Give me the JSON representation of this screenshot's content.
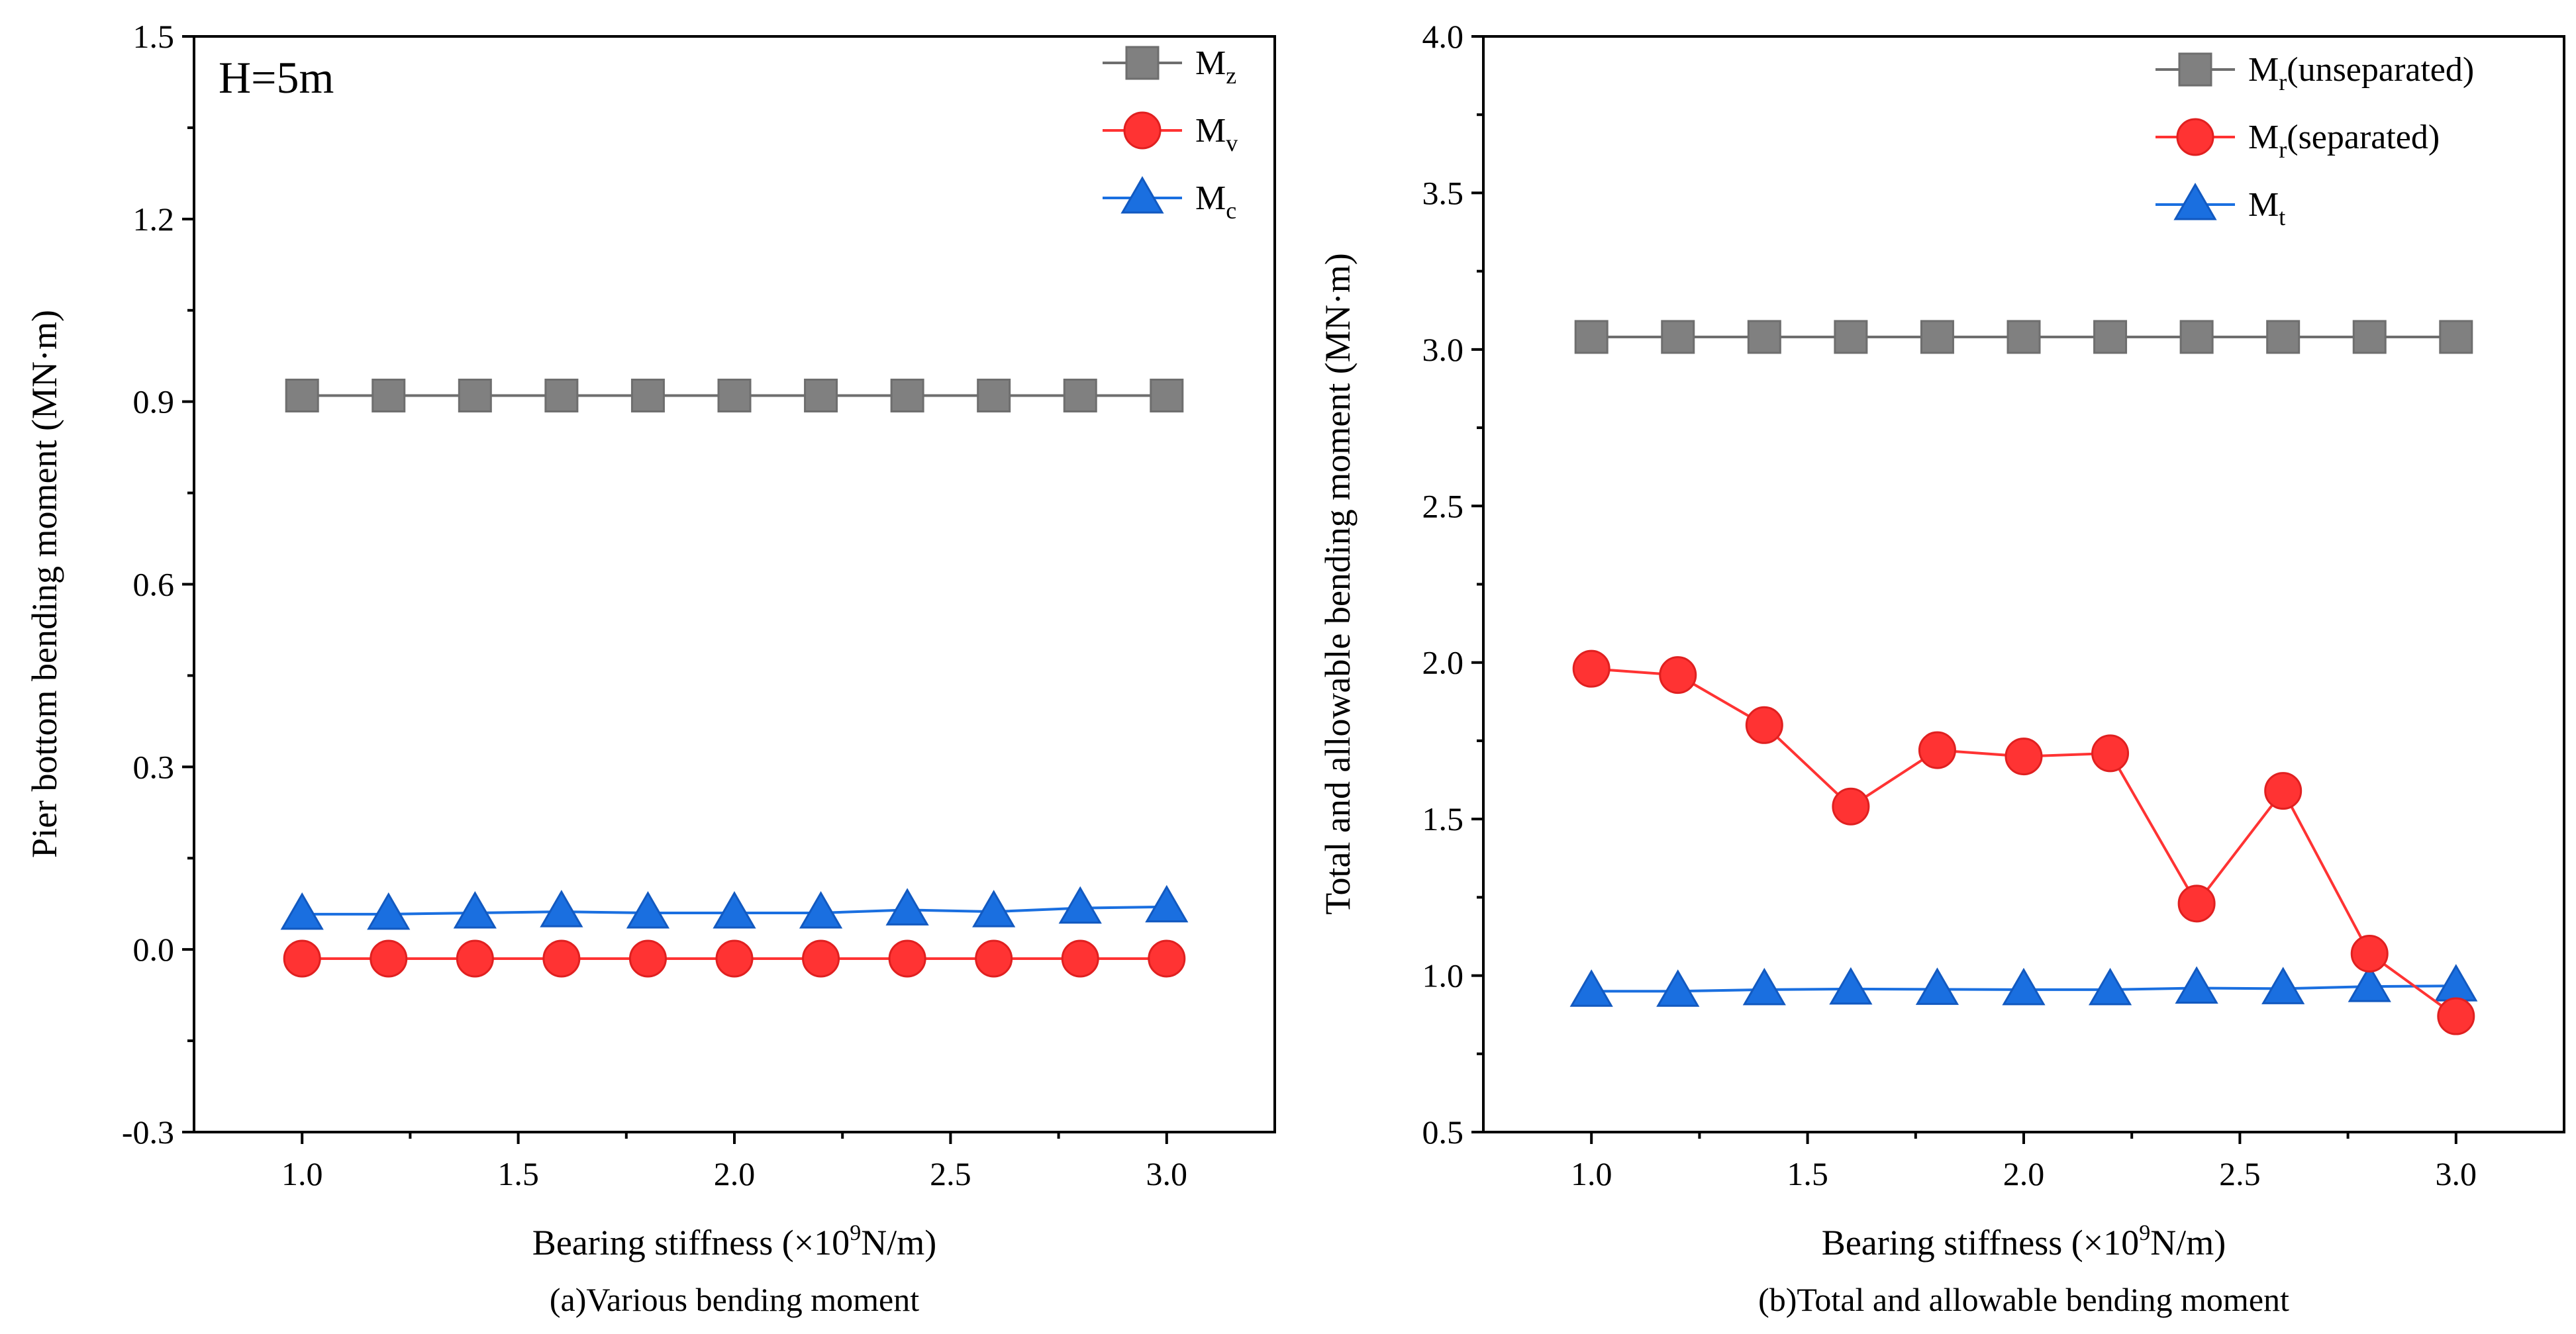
{
  "chart_data": [
    {
      "type": "line",
      "panel": "a",
      "caption": "(a)Various bending moment",
      "annotation": "H=5m",
      "xlabel": "Bearing stiffness (×10",
      "xlabel_sup": "9",
      "xlabel_tail": "N/m)",
      "ylabel": "Pier bottom bending moment (MN·m)",
      "xlim": [
        0.75,
        3.25
      ],
      "ylim": [
        -0.3,
        1.5
      ],
      "xticks": [
        1.0,
        1.5,
        2.0,
        2.5,
        3.0
      ],
      "xtick_labels": [
        "1.0",
        "1.5",
        "2.0",
        "2.5",
        "3.0"
      ],
      "yticks": [
        -0.3,
        0.0,
        0.3,
        0.6,
        0.9,
        1.2,
        1.5
      ],
      "ytick_labels": [
        "-0.3",
        "0.0",
        "0.3",
        "0.6",
        "0.9",
        "1.2",
        "1.5"
      ],
      "x": [
        1.0,
        1.2,
        1.4,
        1.6,
        1.8,
        2.0,
        2.2,
        2.4,
        2.6,
        2.8,
        3.0
      ],
      "legend_position": "top-right",
      "series": [
        {
          "name": "M",
          "sub": "z",
          "marker": "square",
          "color": "#6e6e6e",
          "fill": "#808080",
          "values": [
            0.91,
            0.91,
            0.91,
            0.91,
            0.91,
            0.91,
            0.91,
            0.91,
            0.91,
            0.91,
            0.91
          ]
        },
        {
          "name": "M",
          "sub": "v",
          "marker": "circle",
          "color": "#ff3333",
          "fill": "#ff3333",
          "values": [
            -0.015,
            -0.015,
            -0.015,
            -0.015,
            -0.015,
            -0.015,
            -0.015,
            -0.015,
            -0.015,
            -0.015,
            -0.015
          ]
        },
        {
          "name": "M",
          "sub": "c",
          "marker": "triangle",
          "color": "#1a6fe0",
          "fill": "#1a6fe0",
          "values": [
            0.058,
            0.058,
            0.06,
            0.062,
            0.06,
            0.06,
            0.06,
            0.065,
            0.062,
            0.068,
            0.07
          ]
        }
      ]
    },
    {
      "type": "line",
      "panel": "b",
      "caption": "(b)Total and allowable bending moment",
      "xlabel": "Bearing stiffness (×10",
      "xlabel_sup": "9",
      "xlabel_tail": "N/m)",
      "ylabel": "Total and allowable bending moment (MN·m)",
      "xlim": [
        0.75,
        3.25
      ],
      "ylim": [
        0.5,
        4.0
      ],
      "xticks": [
        1.0,
        1.5,
        2.0,
        2.5,
        3.0
      ],
      "xtick_labels": [
        "1.0",
        "1.5",
        "2.0",
        "2.5",
        "3.0"
      ],
      "yticks": [
        0.5,
        1.0,
        1.5,
        2.0,
        2.5,
        3.0,
        3.5,
        4.0
      ],
      "ytick_labels": [
        "0.5",
        "1.0",
        "1.5",
        "2.0",
        "2.5",
        "3.0",
        "3.5",
        "4.0"
      ],
      "x": [
        1.0,
        1.2,
        1.4,
        1.6,
        1.8,
        2.0,
        2.2,
        2.4,
        2.6,
        2.8,
        3.0
      ],
      "legend_position": "top-right",
      "series": [
        {
          "name": "M",
          "sub": "r",
          "suffix": "(unseparated)",
          "marker": "square",
          "color": "#6e6e6e",
          "fill": "#808080",
          "values": [
            3.04,
            3.04,
            3.04,
            3.04,
            3.04,
            3.04,
            3.04,
            3.04,
            3.04,
            3.04,
            3.04
          ]
        },
        {
          "name": "M",
          "sub": "r",
          "suffix": "(separated)",
          "marker": "circle",
          "color": "#ff3333",
          "fill": "#ff3333",
          "values": [
            1.98,
            1.96,
            1.8,
            1.54,
            1.72,
            1.7,
            1.71,
            1.23,
            1.59,
            1.07,
            0.87
          ]
        },
        {
          "name": "M",
          "sub": "t",
          "marker": "triangle",
          "color": "#1a6fe0",
          "fill": "#1a6fe0",
          "values": [
            0.95,
            0.95,
            0.955,
            0.957,
            0.956,
            0.955,
            0.955,
            0.96,
            0.958,
            0.965,
            0.967
          ]
        }
      ]
    }
  ]
}
